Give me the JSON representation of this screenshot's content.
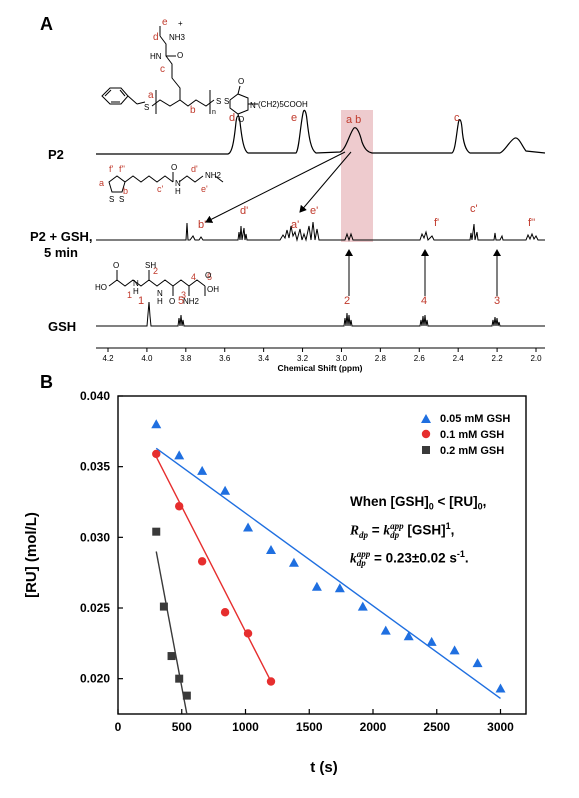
{
  "panels": {
    "a": "A",
    "b": "B"
  },
  "nmr": {
    "xlabel": "Chemical Shift (ppm)",
    "ticks": [
      "4.2",
      "4.0",
      "3.8",
      "3.6",
      "3.4",
      "3.2",
      "3.0",
      "2.8",
      "2.6",
      "2.4",
      "2.2",
      "2.0"
    ],
    "trace_labels": {
      "p2": "P2",
      "p2_gsh_line1": "P2 + GSH,",
      "p2_gsh_line2": "5 min",
      "gsh": "GSH"
    },
    "p2_peaks": {
      "d": "d",
      "e": "e",
      "ab": "a b",
      "c": "c"
    },
    "p2gsh_peaks": {
      "b1": "b'",
      "d1": "d'",
      "a1": "a'",
      "e1": "e'",
      "f1": "f'",
      "c1": "c'",
      "f2": "f''"
    },
    "gsh_peaks": {
      "p1": "1",
      "p5": "5",
      "p2": "2",
      "p4": "4",
      "p3": "3"
    },
    "structure_p2": {
      "d": "d",
      "e": "e",
      "nh3": "NH3",
      "plus": "+",
      "hn": "HN",
      "o": "O",
      "c": "c",
      "a": "a",
      "b": "b",
      "s": "S",
      "n_sub": "n",
      "s2": "S",
      "n": "N",
      "o2": "O",
      "o3": "O",
      "chain": "(CH2)5COOH",
      "s3": "S"
    },
    "structure_lipo": {
      "a": "a",
      "b": "b",
      "f1": "f'",
      "f2": "f''",
      "c1": "c'",
      "o": "O",
      "n": "N",
      "h": "H",
      "d1": "d'",
      "e1": "e'",
      "nh2": "NH2",
      "s1": "S",
      "s2": "S"
    },
    "structure_gsh": {
      "ho": "HO",
      "o1": "O",
      "n1": "N",
      "h1": "H",
      "one": "1",
      "sh": "SH",
      "two": "2",
      "o2": "O",
      "o3": "O",
      "n2": "N",
      "h2": "H",
      "three": "3",
      "four": "4",
      "five": "5",
      "nh2": "NH2",
      "o4": "O",
      "oh": "OH"
    }
  },
  "legend": {
    "s1": {
      "label": "0.05 mM GSH",
      "color": "#1f6fe0",
      "marker": "triangle"
    },
    "s2": {
      "label": "0.1 mM GSH",
      "color": "#e62e2e",
      "marker": "circle"
    },
    "s3": {
      "label": "0.2 mM GSH",
      "color": "#3a3a3a",
      "marker": "square"
    }
  },
  "equation": {
    "l1_pre": "When [GSH]",
    "l1_sub0": "0",
    "l1_mid": " < [RU]",
    "l1_sub1": "0",
    "l1_end": ",",
    "l2_R": "R",
    "l2_dp": "dp",
    "l2_eq": " = ",
    "l2_k": "k",
    "l2_dp2": "dp",
    "l2_app": "app",
    "l2_gsh": " [GSH]",
    "l2_exp": "1",
    "l2_end": ",",
    "l3_k": "k",
    "l3_dp": "dp",
    "l3_app": "app",
    "l3_val": " = 0.23±0.02 s",
    "l3_exp": "-1",
    "l3_end": "."
  },
  "chart_data": {
    "type": "scatter",
    "xlabel": "t (s)",
    "ylabel": "[RU] (mol/L)",
    "xlim": [
      0,
      3200
    ],
    "ylim": [
      0.0175,
      0.04
    ],
    "xticks": [
      0,
      500,
      1000,
      1500,
      2000,
      2500,
      3000
    ],
    "yticks": [
      0.02,
      0.025,
      0.03,
      0.035,
      0.04
    ],
    "ytick_labels": [
      "0.020",
      "0.025",
      "0.030",
      "0.035",
      "0.040"
    ],
    "legend_position": "top-right",
    "series": [
      {
        "name": "0.05 mM GSH",
        "color": "#1f6fe0",
        "marker": "triangle",
        "x": [
          300,
          480,
          660,
          840,
          1020,
          1200,
          1380,
          1560,
          1740,
          1920,
          2100,
          2280,
          2460,
          2640,
          2820,
          3000
        ],
        "y": [
          0.038,
          0.0358,
          0.0347,
          0.0333,
          0.0307,
          0.0291,
          0.0282,
          0.0265,
          0.0264,
          0.0251,
          0.0234,
          0.023,
          0.0226,
          0.022,
          0.0211,
          0.0193
        ],
        "fit": {
          "x": [
            300,
            3000
          ],
          "y": [
            0.0363,
            0.0186
          ]
        }
      },
      {
        "name": "0.1 mM GSH",
        "color": "#e62e2e",
        "marker": "circle",
        "x": [
          300,
          480,
          660,
          840,
          1020,
          1200
        ],
        "y": [
          0.0359,
          0.0322,
          0.0283,
          0.0247,
          0.0232,
          0.0198
        ],
        "fit": {
          "x": [
            300,
            1200
          ],
          "y": [
            0.0357,
            0.0198
          ]
        }
      },
      {
        "name": "0.2 mM GSH",
        "color": "#3a3a3a",
        "marker": "square",
        "x": [
          300,
          360,
          420,
          480,
          540
        ],
        "y": [
          0.0304,
          0.0251,
          0.0216,
          0.02,
          0.0188
        ],
        "fit": {
          "x": [
            300,
            540
          ],
          "y": [
            0.029,
            0.0175
          ]
        }
      }
    ]
  }
}
